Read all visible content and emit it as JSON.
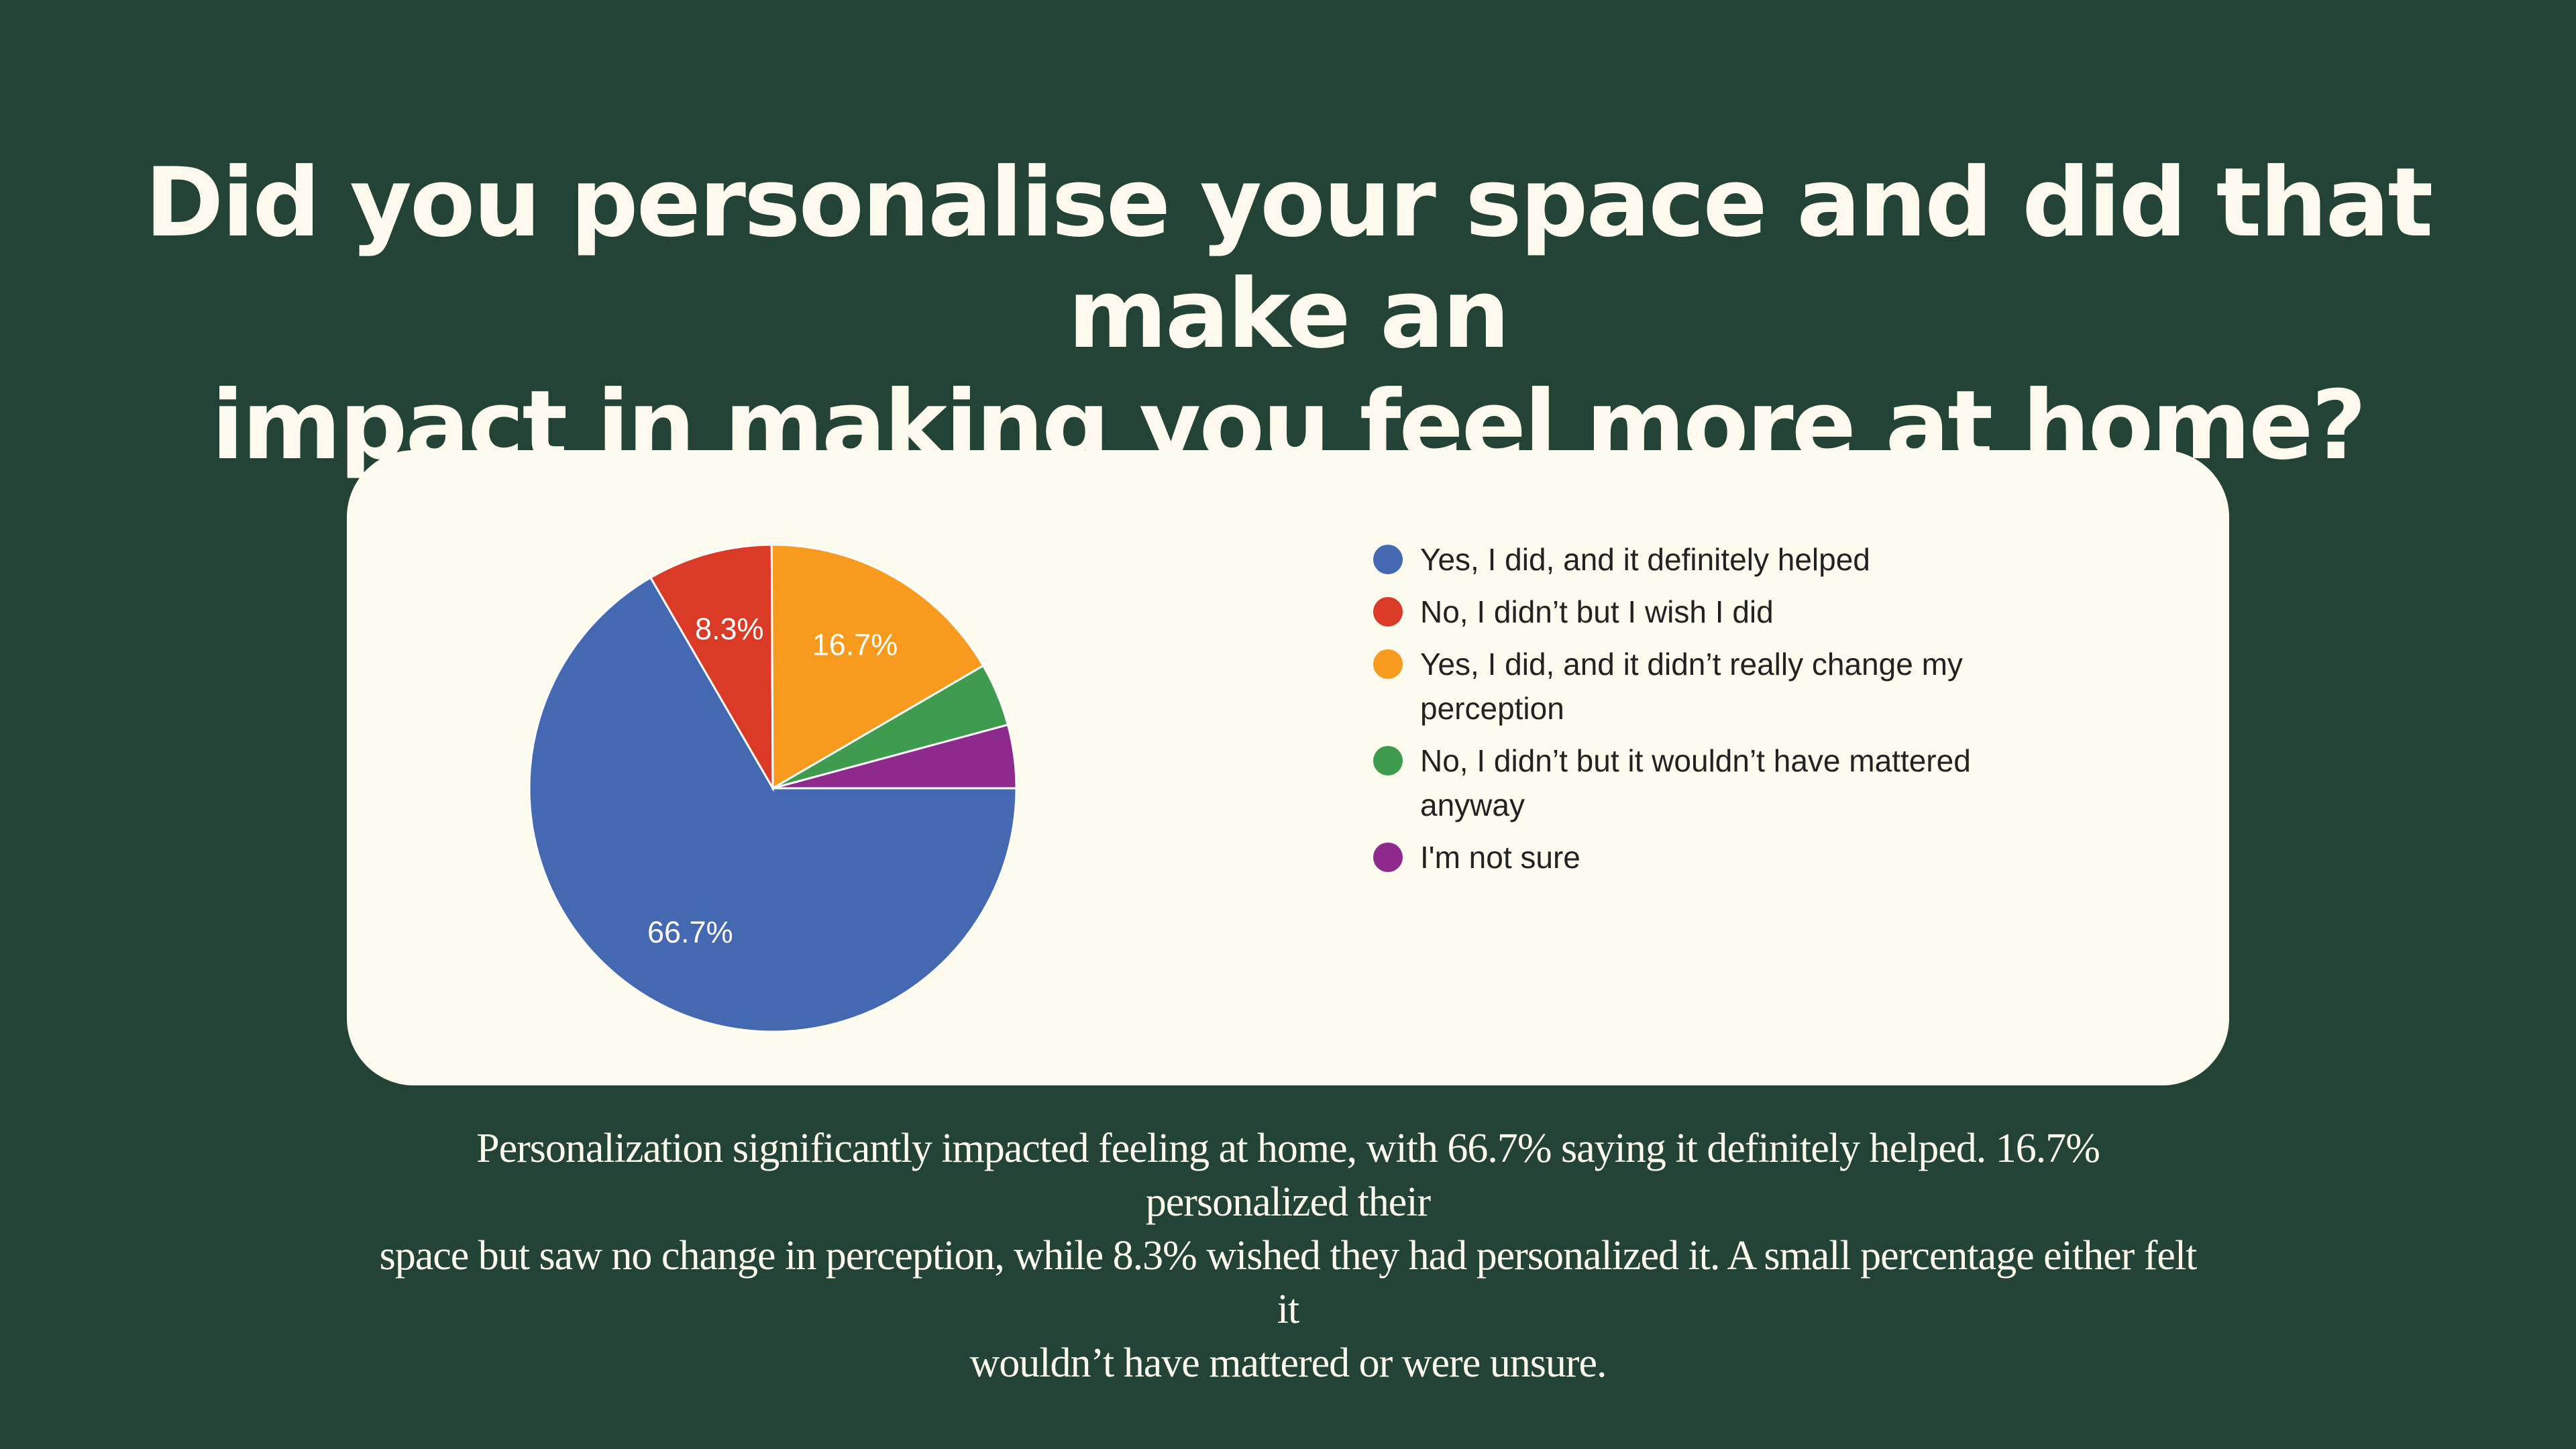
{
  "title_lines": [
    "Did you personalise your space and did that make an",
    "impact in making you feel more at home?"
  ],
  "caption_lines": [
    "Personalization significantly impacted feeling at home, with 66.7% saying it definitely helped. 16.7% personalized their",
    "space but saw no change in perception, while 8.3% wished they had personalized it. A small percentage either felt it",
    "wouldn’t have mattered or were unsure."
  ],
  "chart_data": {
    "type": "pie",
    "title": "",
    "slices": [
      {
        "label": "Yes, I did, and it definitely helped",
        "legend_lines": [
          "Yes, I did, and it definitely helped"
        ],
        "value": 66.7,
        "data_label": "66.7%",
        "color": "#4468b2"
      },
      {
        "label": "No, I didn’t but I wish I did",
        "legend_lines": [
          "No, I didn’t but I wish I did"
        ],
        "value": 8.3,
        "data_label": "8.3%",
        "color": "#da3a26"
      },
      {
        "label": "Yes, I did, and it didn’t really change my perception",
        "legend_lines": [
          "Yes, I did, and it didn’t really change my",
          "perception"
        ],
        "value": 16.7,
        "data_label": "16.7%",
        "color": "#f89a1e"
      },
      {
        "label": "No, I didn’t but it wouldn’t have mattered anyway",
        "legend_lines": [
          "No, I didn’t but it wouldn’t have mattered",
          "anyway"
        ],
        "value": 4.2,
        "data_label": "",
        "color": "#3f9c4f"
      },
      {
        "label": "I'm not sure",
        "legend_lines": [
          "I'm not sure"
        ],
        "value": 4.2,
        "data_label": "",
        "color": "#8e2a8c"
      }
    ],
    "legend_position": "right",
    "start_angle": "3 o'clock",
    "direction": "clockwise"
  },
  "colors": {
    "background": "#224335",
    "card": "#fdfbee",
    "heading": "#fdf9ec"
  }
}
